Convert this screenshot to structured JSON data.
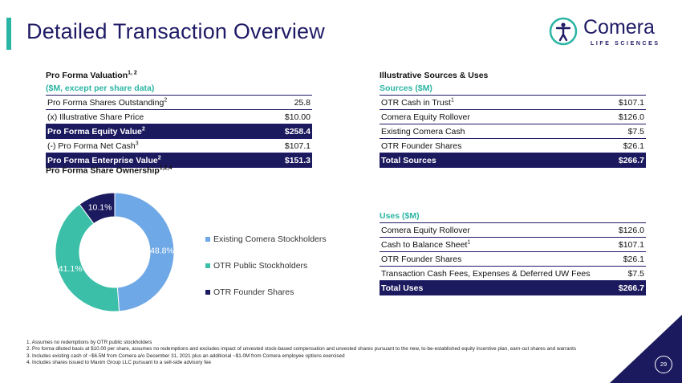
{
  "header": {
    "title": "Detailed Transaction Overview",
    "logo_name": "Comera",
    "logo_tagline": "LIFE SCIENCES",
    "logo_icon": "person-icon"
  },
  "colors": {
    "navy": "#1c1a5e",
    "teal": "#2bb5a4",
    "blue": "#6fa8e6",
    "teal_slice": "#3cbfa8"
  },
  "valuation": {
    "title": "Pro Forma Valuation",
    "title_sup": "1, 2",
    "subtitle": "($M, except per share data)",
    "rows": [
      {
        "label": "Pro Forma Shares Outstanding",
        "sup": "2",
        "value": "25.8",
        "highlight": false
      },
      {
        "label": "(x) Illustrative Share Price",
        "sup": "",
        "value": "$10.00",
        "highlight": false
      },
      {
        "label": "Pro Forma Equity Value",
        "sup": "2",
        "value": "$258.4",
        "highlight": true
      },
      {
        "label": "(-) Pro Forma Net Cash",
        "sup": "3",
        "value": "$107.1",
        "highlight": false
      },
      {
        "label": "Pro Forma Enterprise Value",
        "sup": "2",
        "value": "$151.3",
        "highlight": true
      }
    ]
  },
  "sources_uses": {
    "title": "Illustrative Sources & Uses",
    "sources_title": "Sources ($M)",
    "sources": [
      {
        "label": "OTR Cash in Trust",
        "sup": "1",
        "value": "$107.1",
        "highlight": false
      },
      {
        "label": "Comera Equity Rollover",
        "sup": "",
        "value": "$126.0",
        "highlight": false
      },
      {
        "label": "Existing Comera Cash",
        "sup": "",
        "value": "$7.5",
        "highlight": false
      },
      {
        "label": "OTR Founder Shares",
        "sup": "",
        "value": "$26.1",
        "highlight": false
      },
      {
        "label": "Total Sources",
        "sup": "",
        "value": "$266.7",
        "highlight": true
      }
    ],
    "uses_title": "Uses ($M)",
    "uses": [
      {
        "label": "Comera Equity Rollover",
        "sup": "",
        "value": "$126.0",
        "highlight": false
      },
      {
        "label": "Cash to Balance Sheet",
        "sup": "1",
        "value": "$107.1",
        "highlight": false
      },
      {
        "label": "OTR Founder Shares",
        "sup": "",
        "value": "$26.1",
        "highlight": false
      },
      {
        "label": "Transaction Cash Fees, Expenses & Deferred UW Fees",
        "sup": "",
        "value": "$7.5",
        "highlight": false
      },
      {
        "label": "Total Uses",
        "sup": "",
        "value": "$266.7",
        "highlight": true
      }
    ]
  },
  "ownership": {
    "title": "Pro Forma Share Ownership",
    "title_sup": "1,2,4"
  },
  "chart_data": {
    "type": "pie",
    "donut": true,
    "title": "Pro Forma Share Ownership",
    "categories": [
      "Existing Comera Stockholders",
      "OTR Public Stockholders",
      "OTR Founder Shares"
    ],
    "values": [
      48.8,
      41.1,
      10.1
    ],
    "labels": [
      "48.8%",
      "41.1%",
      "10.1%"
    ],
    "colors": [
      "#6fa8e6",
      "#3cbfa8",
      "#1c1a5e"
    ],
    "legend_position": "right"
  },
  "footnotes": [
    "1. Assumes no redemptions by OTR public stockholders",
    "2. Pro forma diluted basis at $10.00 per share, assumes no redemptions and excludes impact of unvested stock-based compensation and unvested shares pursuant to the new, to-be-established equity incentive plan, earn-out shares and warrants",
    "3. Includes existing cash of ~$6.5M from Comera a/o December 31, 2021 plus an additional ~$1.0M from Comera employee options exercised",
    "4. Includes shares issued to Maxim Group LLC pursuant to a sell-side advisory fee"
  ],
  "page_number": "29"
}
